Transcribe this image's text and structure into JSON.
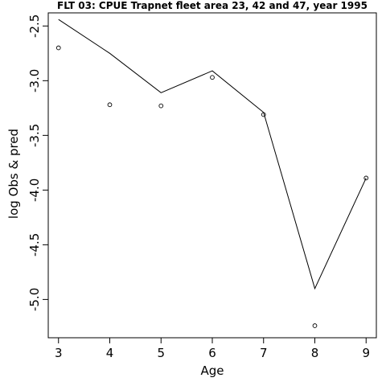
{
  "chart_data": {
    "type": "line",
    "title": "FLT 03: CPUE Trapnet fleet area 23, 42 and 47, year 1995",
    "xlabel": "Age",
    "ylabel": "log Obs & pred",
    "xlim": [
      2.8,
      9.2
    ],
    "ylim": [
      -5.35,
      -2.38
    ],
    "x_ticks": [
      "3",
      "4",
      "5",
      "6",
      "7",
      "8",
      "9"
    ],
    "y_ticks": [
      "-2.5",
      "-3.0",
      "-3.5",
      "-4.0",
      "-4.5",
      "-5.0"
    ],
    "x": [
      3,
      4,
      5,
      6,
      7,
      8,
      9
    ],
    "series": [
      {
        "type": "line",
        "values": [
          -2.44,
          -2.75,
          -3.11,
          -2.91,
          -3.29,
          -4.9,
          -3.89
        ]
      },
      {
        "type": "scatter",
        "marker": "open-circle",
        "values": [
          -2.7,
          -3.22,
          -3.23,
          -2.97,
          -3.31,
          -5.24,
          -3.89
        ]
      }
    ],
    "grid": false,
    "legend": "none",
    "colors": {
      "line": "#000000",
      "points": "#000000",
      "background": "#ffffff"
    }
  }
}
